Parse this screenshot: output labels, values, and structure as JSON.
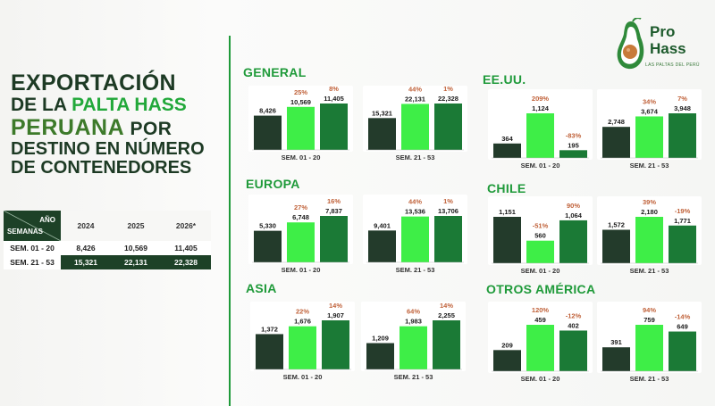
{
  "title": {
    "line1": "EXPORTACIÓN",
    "line2_prefix": "DE LA ",
    "line2_accent": "PALTA HASS",
    "line3_main": "PERUANA",
    "line3_suffix": " POR",
    "line4": "DESTINO EN NÚMERO",
    "line5": "DE CONTENEDORES"
  },
  "logo": {
    "pro": "Pro",
    "hass": "Hass",
    "tagline": "LAS PALTAS DEL PERÚ"
  },
  "table": {
    "corner_top": "AÑO",
    "corner_bottom": "SEMANAS",
    "years": [
      "2024",
      "2025",
      "2026*"
    ],
    "rows": [
      {
        "label": "SEM. 01 - 20",
        "values": [
          "8,426",
          "10,569",
          "11,405"
        ]
      },
      {
        "label": "SEM. 21 - 53",
        "values": [
          "15,321",
          "22,131",
          "22,328"
        ]
      }
    ]
  },
  "colors": {
    "dark": "#233b2b",
    "light": "#3eee47",
    "mid": "#1b7a36",
    "pct": "#c0623a",
    "title": "#1f9a3a"
  },
  "chart_data": [
    {
      "type": "bar",
      "title": "GENERAL",
      "categories": [
        "SEM. 01 - 20",
        "SEM. 21 - 53"
      ],
      "series": [
        {
          "values": [
            8426,
            15321
          ]
        },
        {
          "values": [
            10569,
            22131
          ]
        },
        {
          "values": [
            11405,
            22328
          ]
        }
      ],
      "labels": [
        [
          "8,426",
          "10,569",
          "11,405"
        ],
        [
          "15,321",
          "22,131",
          "22,328"
        ]
      ],
      "pct": [
        [
          "25%",
          "8%"
        ],
        [
          "44%",
          "1%"
        ]
      ]
    },
    {
      "type": "bar",
      "title": "EE.UU.",
      "categories": [
        "SEM. 01 - 20",
        "SEM. 21 - 53"
      ],
      "series": [
        {
          "values": [
            364,
            2748
          ]
        },
        {
          "values": [
            1124,
            3674
          ]
        },
        {
          "values": [
            195,
            3948
          ]
        }
      ],
      "labels": [
        [
          "364",
          "1,124",
          "195"
        ],
        [
          "2,748",
          "3,674",
          "3,948"
        ]
      ],
      "pct": [
        [
          "209%",
          "-83%"
        ],
        [
          "34%",
          "7%"
        ]
      ]
    },
    {
      "type": "bar",
      "title": "EUROPA",
      "categories": [
        "SEM. 01 - 20",
        "SEM. 21 - 53"
      ],
      "series": [
        {
          "values": [
            5330,
            9401
          ]
        },
        {
          "values": [
            6748,
            13536
          ]
        },
        {
          "values": [
            7837,
            13706
          ]
        }
      ],
      "labels": [
        [
          "5,330",
          "6,748",
          "7,837"
        ],
        [
          "9,401",
          "13,536",
          "13,706"
        ]
      ],
      "pct": [
        [
          "27%",
          "16%"
        ],
        [
          "44%",
          "1%"
        ]
      ]
    },
    {
      "type": "bar",
      "title": "CHILE",
      "categories": [
        "SEM. 01 - 20",
        "SEM. 21 - 53"
      ],
      "series": [
        {
          "values": [
            1151,
            1572
          ]
        },
        {
          "values": [
            560,
            2180
          ]
        },
        {
          "values": [
            1064,
            1771
          ]
        }
      ],
      "labels": [
        [
          "1,151",
          "560",
          "1,064"
        ],
        [
          "1,572",
          "2,180",
          "1,771"
        ]
      ],
      "pct": [
        [
          "-51%",
          "90%"
        ],
        [
          "39%",
          "-19%"
        ]
      ]
    },
    {
      "type": "bar",
      "title": "ASIA",
      "categories": [
        "SEM. 01 - 20",
        "SEM. 21 - 53"
      ],
      "series": [
        {
          "values": [
            1372,
            1209
          ]
        },
        {
          "values": [
            1676,
            1983
          ]
        },
        {
          "values": [
            1907,
            2255
          ]
        }
      ],
      "labels": [
        [
          "1,372",
          "1,676",
          "1,907"
        ],
        [
          "1,209",
          "1,983",
          "2,255"
        ]
      ],
      "pct": [
        [
          "22%",
          "14%"
        ],
        [
          "64%",
          "14%"
        ]
      ]
    },
    {
      "type": "bar",
      "title": "OTROS AMÉRICA",
      "categories": [
        "SEM. 01 - 20",
        "SEM. 21 - 53"
      ],
      "series": [
        {
          "values": [
            209,
            391
          ]
        },
        {
          "values": [
            459,
            759
          ]
        },
        {
          "values": [
            402,
            649
          ]
        }
      ],
      "labels": [
        [
          "209",
          "459",
          "402"
        ],
        [
          "391",
          "759",
          "649"
        ]
      ],
      "pct": [
        [
          "120%",
          "-12%"
        ],
        [
          "94%",
          "-14%"
        ]
      ]
    }
  ]
}
